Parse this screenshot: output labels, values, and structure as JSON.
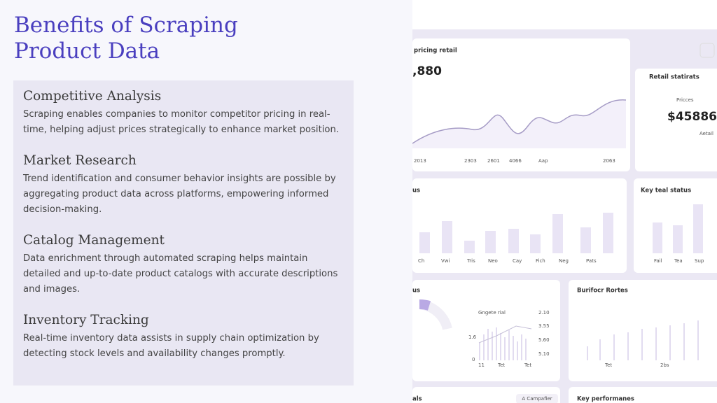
{
  "title": "Benefits of Scraping Product Data",
  "sections": [
    {
      "heading": "Competitive Analysis",
      "body": "Scraping enables companies to monitor competitor pricing in real-time, helping adjust prices strategically to enhance market position."
    },
    {
      "heading": "Market Research",
      "body": "Trend identification and consumer behavior insights are possible by aggregating product data across platforms, empowering informed decision-making."
    },
    {
      "heading": "Catalog Management",
      "body": "Data enrichment through automated scraping helps maintain detailed and up-to-date product catalogs with accurate descriptions and images."
    },
    {
      "heading": "Inventory Tracking",
      "body": "Real-time inventory data assists in supply chain optimization by detecting stock levels and availability changes promptly."
    }
  ],
  "dashboard": {
    "pricing": {
      "title": "pricing retail",
      "value": ",880",
      "labels": [
        "2013",
        "2303",
        "2601",
        "4066",
        "Aap",
        "2063"
      ]
    },
    "retail": {
      "title": "Retail statirats",
      "item": "Pricces",
      "value": "$45886",
      "sub": "Aetail"
    },
    "status": {
      "title": "us",
      "labels": [
        "Ch",
        "Vwi",
        "Tris",
        "Neo",
        "Cay",
        "Fich",
        "Neg",
        "Pats"
      ]
    },
    "key_status": {
      "title": "Key teal status",
      "labels": [
        "Fail",
        "Tea",
        "Sup"
      ]
    },
    "donut": {
      "title": "us",
      "legend": "Gngete rial",
      "left_labels": [
        "1.6",
        "0"
      ],
      "right_labels": [
        "2.10",
        "3.55",
        "5.60",
        "5.10"
      ],
      "x_labels": [
        "11",
        "Tet",
        "Tet"
      ]
    },
    "routes": {
      "title": "Burifocr Rortes",
      "labels": [
        "Tet",
        "2bs"
      ]
    },
    "bottom_left": {
      "title": "als",
      "button": "A Campafier"
    },
    "bottom_right": {
      "title": "Key performanes"
    }
  }
}
